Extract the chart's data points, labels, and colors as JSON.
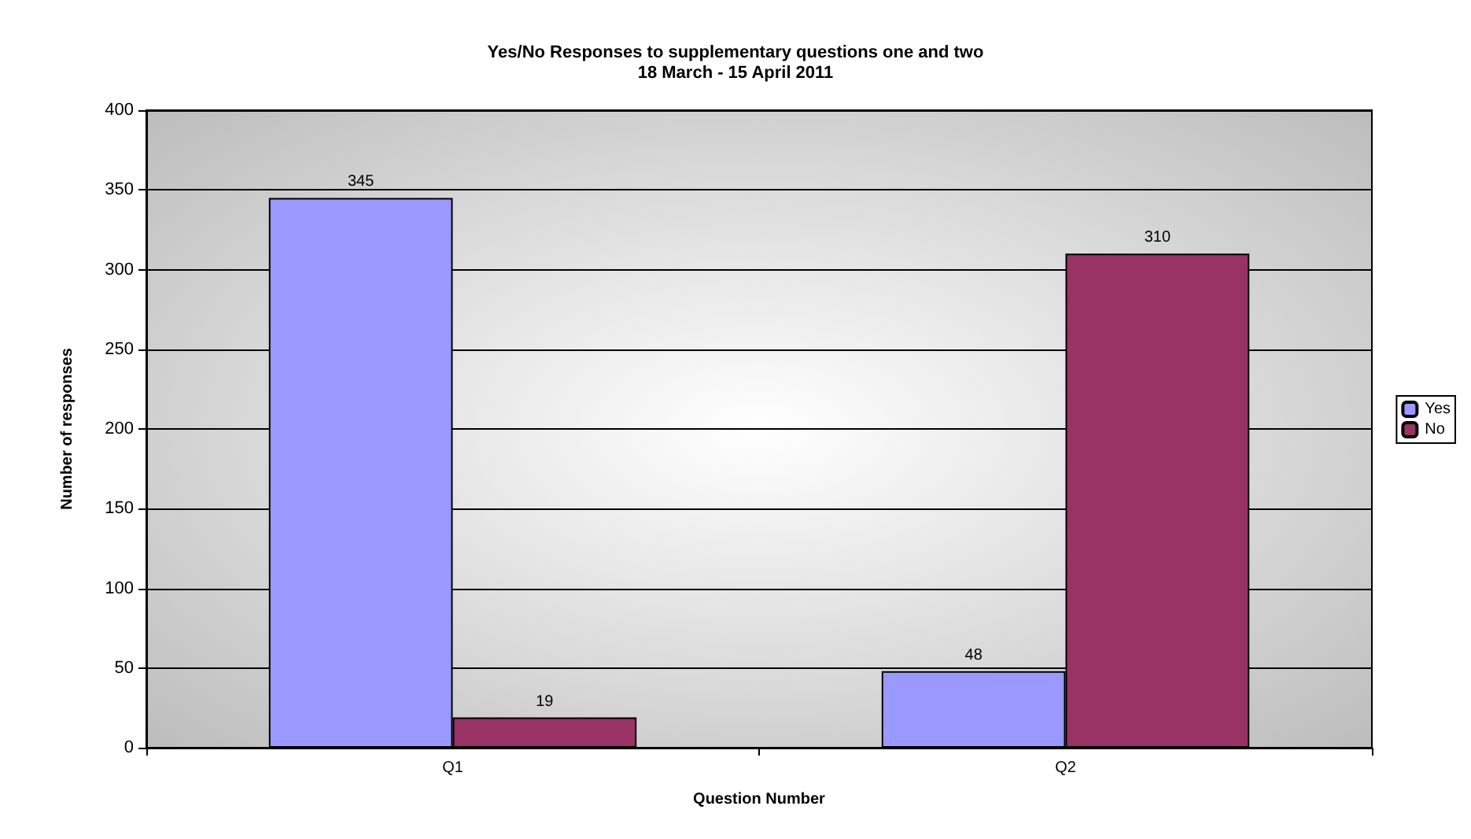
{
  "chart_data": {
    "type": "bar",
    "title": "Yes/No Responses to supplementary questions one and two\n18 March - 15 April 2011",
    "xlabel": "Question Number",
    "ylabel": "Number of responses",
    "categories": [
      "Q1",
      "Q2"
    ],
    "series": [
      {
        "name": "Yes",
        "color": "#9999ff",
        "values": [
          345,
          48
        ]
      },
      {
        "name": "No",
        "color": "#993366",
        "values": [
          19,
          310
        ]
      }
    ],
    "ylim": [
      0,
      400
    ],
    "yticks": [
      0,
      50,
      100,
      150,
      200,
      250,
      300,
      350,
      400
    ],
    "grid": "y",
    "legend": "right",
    "data_labels": true
  }
}
